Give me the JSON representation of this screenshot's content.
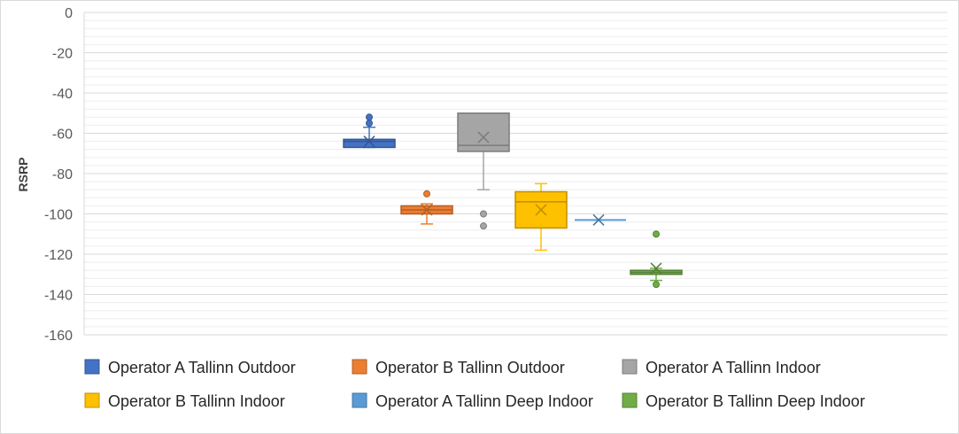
{
  "chart_data": {
    "type": "box",
    "title": "",
    "xlabel": "",
    "ylabel": "RSRP",
    "ylim": [
      -160,
      0
    ],
    "yticks": [
      0,
      -20,
      -40,
      -60,
      -80,
      -100,
      -120,
      -140,
      -160
    ],
    "grid": true,
    "legend_position": "bottom",
    "series": [
      {
        "name": "Operator A Tallinn Outdoor",
        "color": "#4472c4",
        "whisker_low": -67,
        "q1": -67,
        "median": -64,
        "q3": -63,
        "whisker_high": -57,
        "mean": -64,
        "outliers": [
          -52,
          -55
        ]
      },
      {
        "name": "Operator B Tallinn Outdoor",
        "color": "#ed7d31",
        "whisker_low": -105,
        "q1": -100,
        "median": -98,
        "q3": -96,
        "whisker_high": -95,
        "mean": -98,
        "outliers": [
          -90
        ]
      },
      {
        "name": "Operator A Tallinn Indoor",
        "color": "#a5a5a5",
        "whisker_low": -88,
        "q1": -69,
        "median": -66,
        "q3": -50,
        "whisker_high": -50,
        "mean": -62,
        "outliers": [
          -100,
          -106
        ]
      },
      {
        "name": "Operator B Tallinn Indoor",
        "color": "#ffc000",
        "whisker_low": -118,
        "q1": -107,
        "median": -94,
        "q3": -89,
        "whisker_high": -85,
        "mean": -98,
        "outliers": []
      },
      {
        "name": "Operator A Tallinn Deep Indoor",
        "color": "#5b9bd5",
        "whisker_low": -103,
        "q1": -103,
        "median": -103,
        "q3": -103,
        "whisker_high": -103,
        "mean": -103,
        "outliers": []
      },
      {
        "name": "Operator B Tallinn Deep Indoor",
        "color": "#70ad47",
        "whisker_low": -133,
        "q1": -130,
        "median": -129,
        "q3": -128,
        "whisker_high": -127,
        "mean": -127,
        "outliers": [
          -110,
          -135
        ]
      }
    ]
  }
}
